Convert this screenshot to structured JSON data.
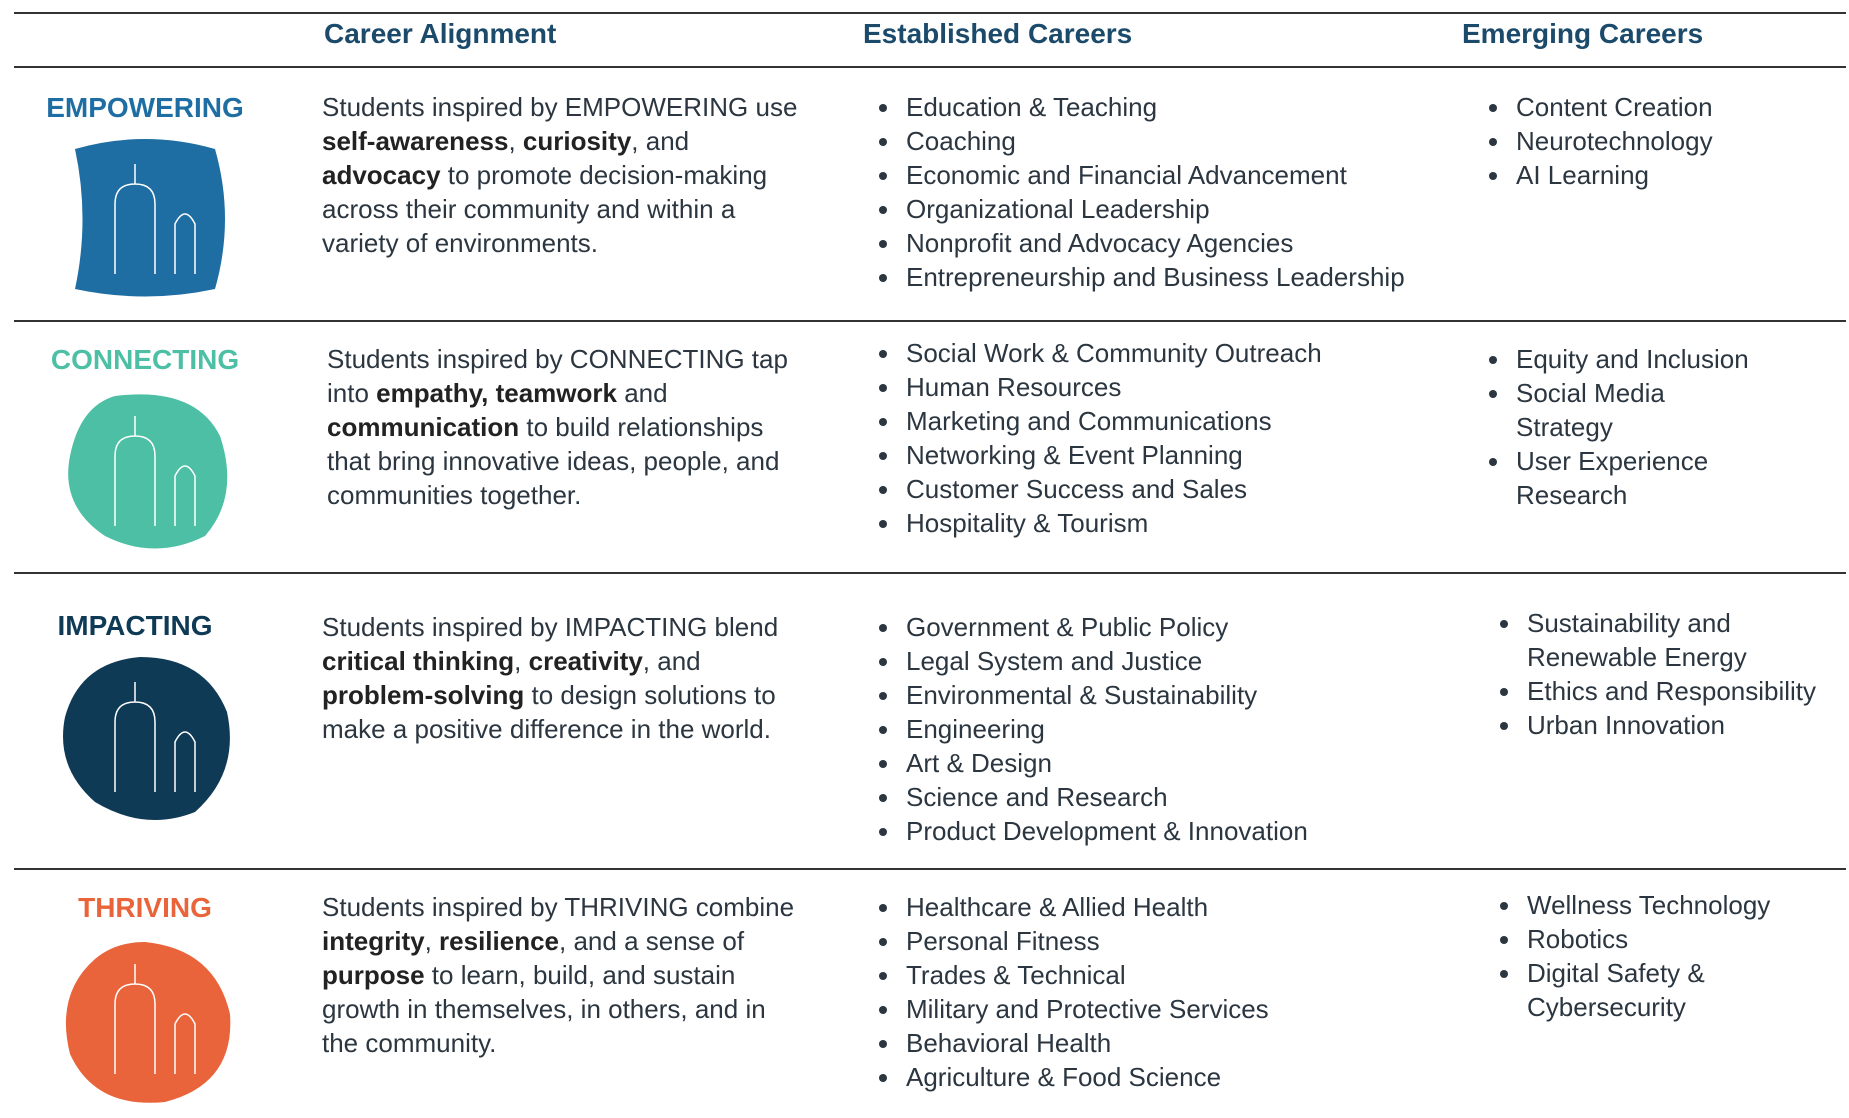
{
  "header": {
    "columns": [
      "Career Alignment",
      "Established Careers",
      "Emerging Careers"
    ]
  },
  "rows": [
    {
      "name": "EMPOWERING",
      "color": "#1f6ea3",
      "description": [
        {
          "text": "Students inspired by EMPOWERING use "
        },
        {
          "text": "self-awareness",
          "bold": true
        },
        {
          "text": ", "
        },
        {
          "text": "curiosity",
          "bold": true
        },
        {
          "text": ", and "
        },
        {
          "text": "advocacy",
          "bold": true
        },
        {
          "text": " to promote decision-making across their community and within a variety of environments."
        }
      ],
      "established": [
        "Education & Teaching",
        "Coaching",
        "Economic and Financial Advancement",
        "Organizational Leadership",
        "Nonprofit and Advocacy Agencies",
        "Entrepreneurship and Business Leadership"
      ],
      "emerging": [
        "Content Creation",
        "Neurotechnology",
        "AI Learning"
      ]
    },
    {
      "name": "CONNECTING",
      "color": "#4dbfa5",
      "description": [
        {
          "text": "Students inspired by CONNECTING tap into "
        },
        {
          "text": "empathy, teamwork",
          "bold": true
        },
        {
          "text": " and "
        },
        {
          "text": "communication",
          "bold": true
        },
        {
          "text": " to build relationships that bring innovative ideas, people, and communities together."
        }
      ],
      "established": [
        "Social Work & Community Outreach",
        "Human Resources",
        "Marketing and Communications",
        "Networking & Event Planning",
        "Customer Success and Sales",
        "Hospitality & Tourism"
      ],
      "emerging": [
        "Equity and Inclusion",
        "Social Media Strategy",
        "User Experience Research"
      ]
    },
    {
      "name": "IMPACTING",
      "color": "#0f3a55",
      "description": [
        {
          "text": "Students inspired by IMPACTING blend "
        },
        {
          "text": "critical thinking",
          "bold": true
        },
        {
          "text": ", "
        },
        {
          "text": "creativity",
          "bold": true
        },
        {
          "text": ", and "
        },
        {
          "text": "problem-solving",
          "bold": true
        },
        {
          "text": " to design solutions to make a positive difference in the world."
        }
      ],
      "established": [
        "Government & Public Policy",
        "Legal System and Justice",
        "Environmental & Sustainability",
        "Engineering",
        "Art & Design",
        "Science and Research",
        "Product Development & Innovation"
      ],
      "emerging": [
        "Sustainability and Renewable Energy",
        "Ethics and Responsibility",
        "Urban Innovation"
      ]
    },
    {
      "name": "THRIVING",
      "color": "#e9643a",
      "description": [
        {
          "text": "Students inspired by THRIVING combine "
        },
        {
          "text": "integrity",
          "bold": true
        },
        {
          "text": ", "
        },
        {
          "text": "resilience",
          "bold": true
        },
        {
          "text": ", and a sense of "
        },
        {
          "text": "purpose",
          "bold": true
        },
        {
          "text": " to learn, build, and sustain growth in themselves, in others, and in the community."
        }
      ],
      "established": [
        "Healthcare & Allied Health",
        "Personal Fitness",
        "Trades & Technical",
        "Military and Protective Services",
        "Behavioral Health",
        "Agriculture & Food Science"
      ],
      "emerging": [
        "Wellness Technology",
        "Robotics",
        "Digital Safety & Cybersecurity"
      ]
    }
  ]
}
